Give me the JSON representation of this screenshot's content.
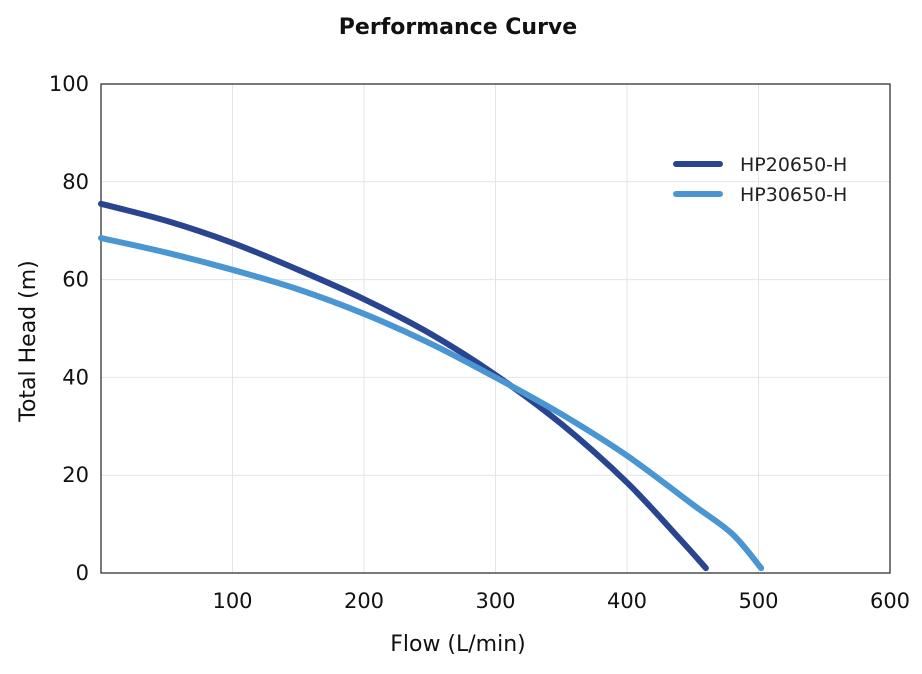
{
  "chart_data": {
    "type": "line",
    "title": "Performance Curve",
    "xlabel": "Flow (L/min)",
    "ylabel": "Total Head (m)",
    "xlim": [
      0,
      600
    ],
    "ylim": [
      0,
      100
    ],
    "x_ticks": [
      100,
      200,
      300,
      400,
      500,
      600
    ],
    "y_ticks": [
      0,
      20,
      40,
      60,
      80,
      100
    ],
    "grid": true,
    "legend_position": "top-right",
    "series": [
      {
        "name": "HP20650-H",
        "color": "#2a4590",
        "x": [
          0,
          50,
          100,
          150,
          200,
          250,
          300,
          350,
          400,
          440,
          460
        ],
        "y": [
          75.5,
          72,
          67.5,
          62,
          56,
          49,
          40.5,
          30.5,
          18.5,
          7,
          1
        ]
      },
      {
        "name": "HP30650-H",
        "color": "#4a96d2",
        "x": [
          0,
          50,
          100,
          150,
          200,
          250,
          300,
          350,
          400,
          450,
          480,
          502
        ],
        "y": [
          68.5,
          65.5,
          62,
          58,
          53,
          47,
          40,
          32.5,
          24,
          14,
          8,
          1
        ]
      }
    ]
  }
}
